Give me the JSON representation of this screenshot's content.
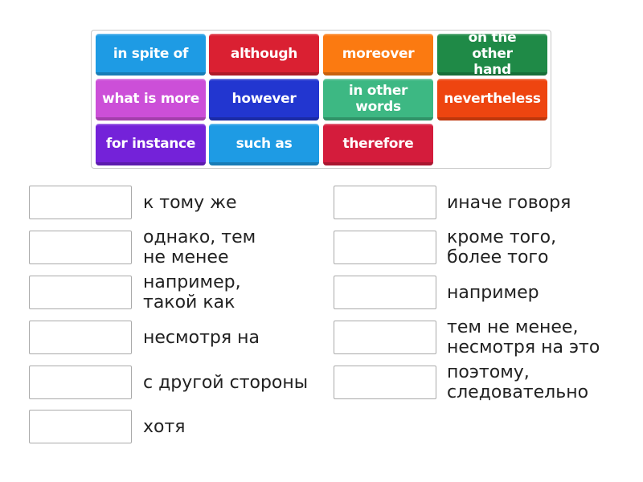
{
  "tiles": [
    {
      "label": "in spite of",
      "color": "#1e9be4"
    },
    {
      "label": "although",
      "color": "#da2032"
    },
    {
      "label": "moreover",
      "color": "#fb7a11"
    },
    {
      "label": "on the other hand",
      "color": "#1f8a47"
    },
    {
      "label": "what is more",
      "color": "#cc4fd8"
    },
    {
      "label": "however",
      "color": "#2236d0"
    },
    {
      "label": "in other words",
      "color": "#3db883"
    },
    {
      "label": "nevertheless",
      "color": "#ee4510"
    },
    {
      "label": "for instance",
      "color": "#7422d9"
    },
    {
      "label": "such as",
      "color": "#1e9be4"
    },
    {
      "label": "therefore",
      "color": "#d41c3c"
    }
  ],
  "definitions": [
    "к тому же",
    "однако, тем\nне менее",
    "например,\nтакой как",
    "несмотря на",
    "с другой стороны",
    "хотя",
    "иначе говоря",
    "кроме того,\nболее того",
    "например",
    "тем не менее,\nнесмотря на это",
    "поэтому,\nследовательно"
  ]
}
